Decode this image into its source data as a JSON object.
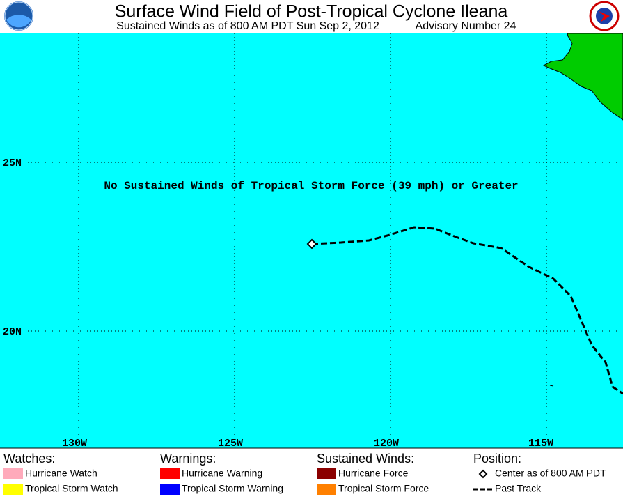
{
  "header": {
    "title": "Surface Wind Field of Post-Tropical Cyclone Ileana",
    "subtitle": "Sustained Winds as of 800 AM PDT Sun Sep 2, 2012",
    "advisory": "Advisory Number 24"
  },
  "map": {
    "longitude_labels": [
      "130W",
      "125W",
      "120W",
      "115W"
    ],
    "latitude_labels": [
      "25N",
      "20N"
    ],
    "message": "No Sustained Winds of Tropical Storm Force (39 mph) or Greater"
  },
  "legend": {
    "groups": [
      {
        "title": "Watches:",
        "items": [
          {
            "label": "Hurricane Watch",
            "color": "#ffaabb"
          },
          {
            "label": "Tropical Storm Watch",
            "color": "#ffff00"
          }
        ]
      },
      {
        "title": "Warnings:",
        "items": [
          {
            "label": "Hurricane Warning",
            "color": "#ff0000"
          },
          {
            "label": "Tropical Storm Warning",
            "color": "#0000ff"
          }
        ]
      },
      {
        "title": "Sustained Winds:",
        "items": [
          {
            "label": "Hurricane Force",
            "color": "#8b0000"
          },
          {
            "label": "Tropical Storm Force",
            "color": "#ff8000"
          }
        ]
      },
      {
        "title": "Position:",
        "items": [
          {
            "label": "Center as of 800 AM PDT"
          },
          {
            "label": "Past Track"
          }
        ]
      }
    ]
  }
}
